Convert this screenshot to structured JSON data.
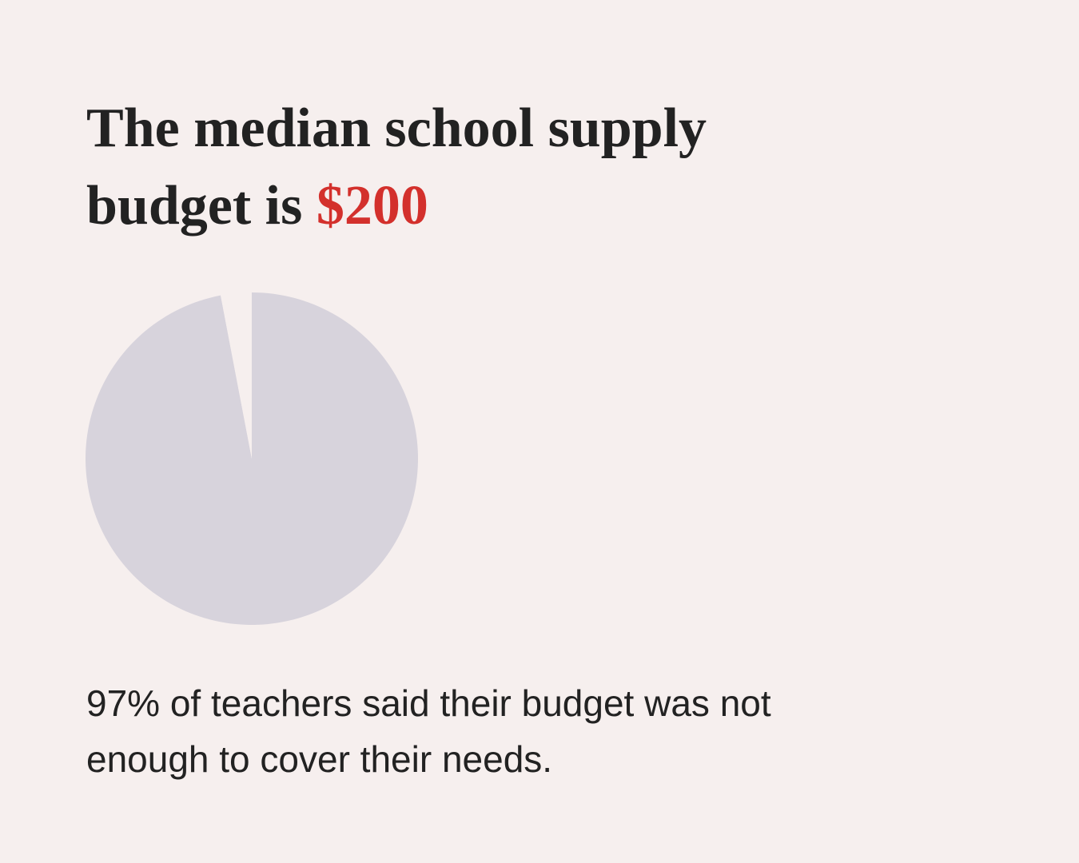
{
  "chart_data": {
    "type": "pie",
    "title": "The median school supply budget is",
    "title_highlight": "$200",
    "caption": "97% of teachers said their budget was not enough to cover their needs.",
    "categories": [
      null,
      null
    ],
    "values": [
      97,
      3
    ],
    "colors": [
      "#d7d3dc",
      "#f6efee"
    ],
    "highlight_color": "#d3302c"
  }
}
